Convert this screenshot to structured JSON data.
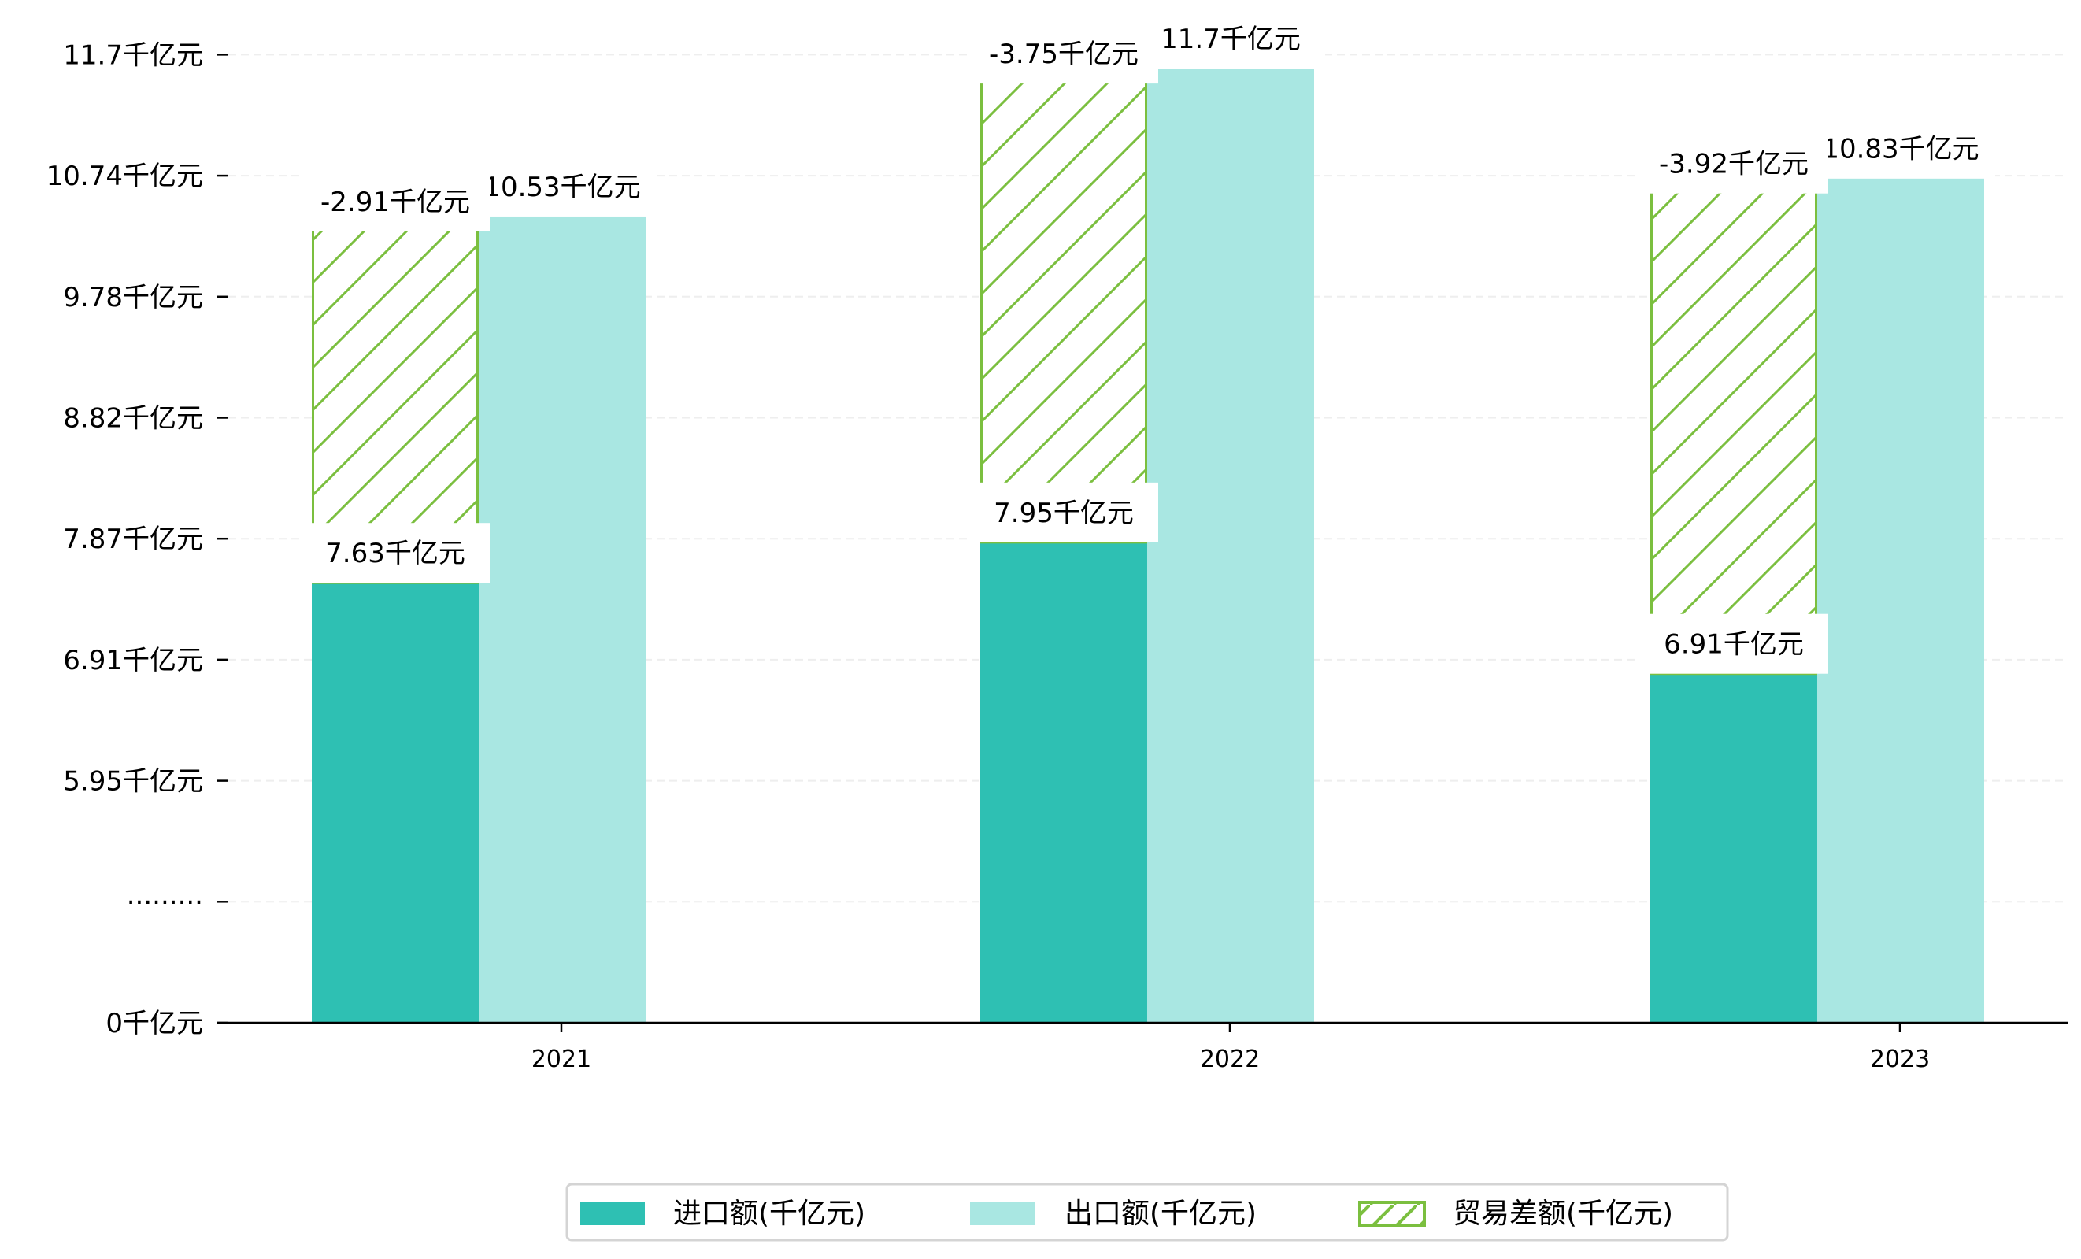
{
  "chart_data": {
    "type": "bar",
    "title": "",
    "xlabel": "",
    "ylabel": "",
    "categories": [
      "2021",
      "2022",
      "2023"
    ],
    "series": [
      {
        "name": "进口额(千亿元)",
        "values": [
          7.63,
          7.95,
          6.91
        ],
        "labels": [
          "7.63千亿元",
          "7.95千亿元",
          "6.91千亿元"
        ],
        "color": "#2EC0B3"
      },
      {
        "name": "出口额(千亿元)",
        "values": [
          10.53,
          11.7,
          10.83
        ],
        "labels": [
          "10.53千亿元",
          "11.7千亿元",
          "10.83千亿元"
        ],
        "color": "#A9E7E2"
      },
      {
        "name": "贸易差额(千亿元)",
        "values": [
          -2.91,
          -3.75,
          -3.92
        ],
        "labels": [
          "-2.91千亿元",
          "-3.75千亿元",
          "-3.92千亿元"
        ],
        "color": "#7BBF3F",
        "hatch": "/"
      }
    ],
    "yticks": [
      {
        "value": 0,
        "label": "0千亿元"
      },
      {
        "value": null,
        "label": "·········"
      },
      {
        "value": 5.95,
        "label": "5.95千亿元"
      },
      {
        "value": 6.91,
        "label": "6.91千亿元"
      },
      {
        "value": 7.87,
        "label": "7.87千亿元"
      },
      {
        "value": 8.82,
        "label": "8.82千亿元"
      },
      {
        "value": 9.78,
        "label": "9.78千亿元"
      },
      {
        "value": 10.74,
        "label": "10.74千亿元"
      },
      {
        "value": 11.7,
        "label": "11.7千亿元"
      }
    ],
    "grid": "horizontal dashed",
    "legend_position": "bottom-center",
    "axis_break": true
  }
}
